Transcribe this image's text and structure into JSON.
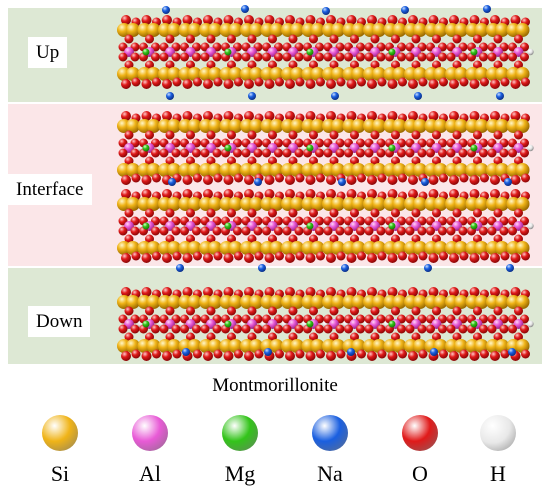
{
  "regions": {
    "up_label": "Up",
    "interface_label": "Interface",
    "down_label": "Down"
  },
  "caption": "Montmorillonite",
  "colors": {
    "si": "#f0b418",
    "al": "#e85ad6",
    "mg": "#33c41a",
    "na": "#1a5fe0",
    "o": "#e01a1a",
    "h": "#f2f2f2",
    "layer_bg": "#dde8d4",
    "interface_bg": "#fbe6e8"
  },
  "legend": [
    {
      "symbol": "Si",
      "color": "#f0b418",
      "icon": "si-atom-ball"
    },
    {
      "symbol": "Al",
      "color": "#e85ad6",
      "icon": "al-atom-ball"
    },
    {
      "symbol": "Mg",
      "color": "#33c41a",
      "icon": "mg-atom-ball"
    },
    {
      "symbol": "Na",
      "color": "#1a5fe0",
      "icon": "na-atom-ball"
    },
    {
      "symbol": "O",
      "color": "#e01a1a",
      "icon": "o-atom-ball"
    },
    {
      "symbol": "H",
      "color": "#f2f2f2",
      "icon": "h-atom-ball"
    }
  ]
}
